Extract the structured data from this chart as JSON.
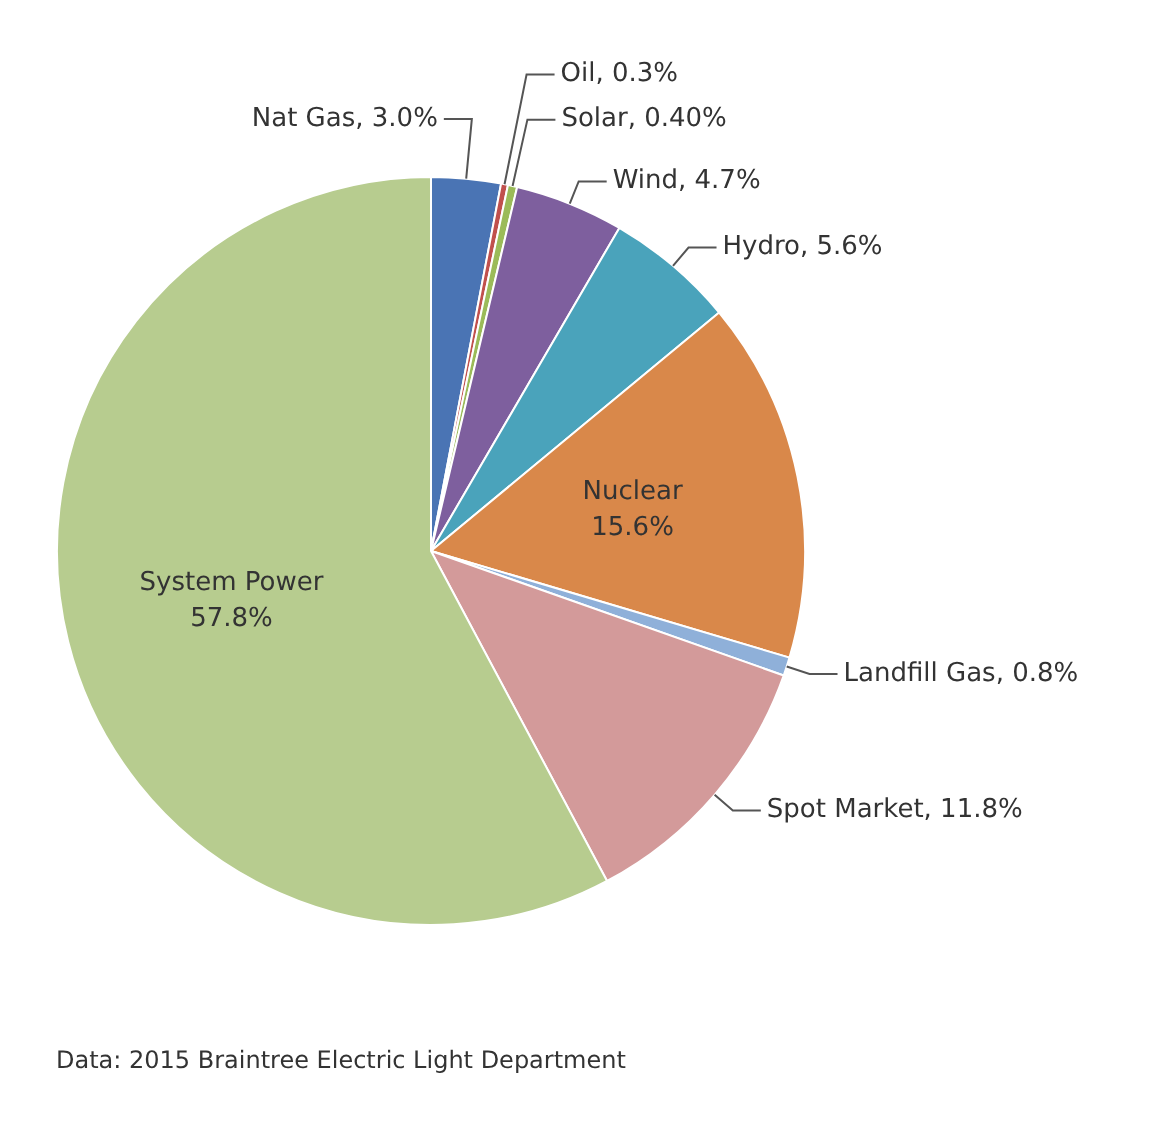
{
  "chart_data": {
    "type": "pie",
    "categories": [
      "Nat Gas",
      "Oil",
      "Solar",
      "Wind",
      "Hydro",
      "Nuclear",
      "Landfill Gas",
      "Spot Market",
      "System Power"
    ],
    "values": [
      3.0,
      0.3,
      0.4,
      4.7,
      5.6,
      15.6,
      0.8,
      11.8,
      57.8
    ],
    "value_labels": [
      "3.0%",
      "0.3%",
      "0.40%",
      "4.7%",
      "5.6%",
      "15.6%",
      "0.8%",
      "11.8%",
      "57.8%"
    ],
    "colors": [
      "#4a74b4",
      "#c0504d",
      "#9bbb59",
      "#7e5f9e",
      "#4aa3bb",
      "#d9884a",
      "#8fb0d9",
      "#d39a9a",
      "#b7cc8f"
    ],
    "legend": false,
    "annotations": [
      "Data: 2015 Braintree Electric Light Department"
    ]
  }
}
